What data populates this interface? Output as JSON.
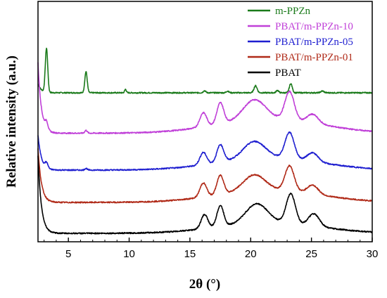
{
  "chart_data": {
    "type": "line",
    "title": "",
    "xlabel": "2θ (°)",
    "ylabel": "Relative intensity (a.u.)",
    "xlim": [
      2.5,
      30
    ],
    "x_ticks": [
      5,
      10,
      15,
      20,
      25,
      30
    ],
    "y_ticks_shown": false,
    "grid": false,
    "legend_position": "top-right",
    "series": [
      {
        "name": "m-PPZn",
        "color": "#1a7a1a",
        "offset": 4.0,
        "peaks": [
          [
            3.2,
            1.25,
            0.1
          ],
          [
            6.45,
            0.6,
            0.1
          ],
          [
            9.7,
            0.1,
            0.07
          ],
          [
            16.2,
            0.06,
            0.1
          ],
          [
            18.1,
            0.05,
            0.1
          ],
          [
            20.4,
            0.2,
            0.13
          ],
          [
            22.2,
            0.07,
            0.1
          ],
          [
            23.3,
            0.26,
            0.12
          ],
          [
            25.9,
            0.05,
            0.13
          ]
        ],
        "baseline_start": 0.25,
        "amorphous": 0.0
      },
      {
        "name": "PBAT/m-PPZn-10",
        "color": "#c040d8",
        "offset": 2.85,
        "peaks": [
          [
            3.2,
            0.2,
            0.12
          ],
          [
            6.45,
            0.08,
            0.1
          ],
          [
            16.1,
            0.4,
            0.28
          ],
          [
            17.5,
            0.6,
            0.28
          ],
          [
            20.3,
            0.55,
            0.9
          ],
          [
            23.2,
            0.8,
            0.38
          ],
          [
            25.1,
            0.25,
            0.45
          ]
        ],
        "baseline_start": 2.0,
        "amorphous": 0.42
      },
      {
        "name": "PBAT/m-PPZn-05",
        "color": "#1f1fd0",
        "offset": 1.8,
        "peaks": [
          [
            3.2,
            0.15,
            0.12
          ],
          [
            6.45,
            0.05,
            0.1
          ],
          [
            16.1,
            0.35,
            0.28
          ],
          [
            17.5,
            0.5,
            0.28
          ],
          [
            20.3,
            0.48,
            0.9
          ],
          [
            23.2,
            0.75,
            0.38
          ],
          [
            25.1,
            0.25,
            0.45
          ]
        ],
        "baseline_start": 1.0,
        "amorphous": 0.35
      },
      {
        "name": "PBAT/m-PPZn-01",
        "color": "#b02a18",
        "offset": 0.88,
        "peaks": [
          [
            16.1,
            0.4,
            0.28
          ],
          [
            17.5,
            0.55,
            0.28
          ],
          [
            20.3,
            0.45,
            0.9
          ],
          [
            23.2,
            0.72,
            0.38
          ],
          [
            25.1,
            0.25,
            0.45
          ]
        ],
        "baseline_start": 1.55,
        "amorphous": 0.35
      },
      {
        "name": "PBAT",
        "color": "#000000",
        "offset": 0.0,
        "peaks": [
          [
            16.2,
            0.4,
            0.28
          ],
          [
            17.5,
            0.6,
            0.28
          ],
          [
            20.5,
            0.55,
            0.9
          ],
          [
            23.3,
            0.85,
            0.38
          ],
          [
            25.2,
            0.35,
            0.45
          ]
        ],
        "baseline_start": 2.2,
        "amorphous": 0.3
      }
    ]
  }
}
